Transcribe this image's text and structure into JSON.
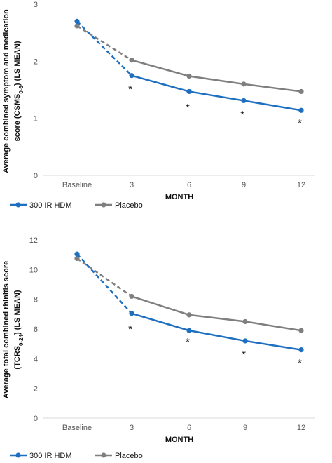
{
  "chart_data": [
    {
      "type": "line",
      "ylabel_line1": "Average combined symptom  and medication",
      "ylabel_line2_prefix": "score (CSMS",
      "ylabel_line2_sub": "0-6",
      "ylabel_line2_suffix": ") (LS MEAN)",
      "xlabel": "MONTH",
      "categories": [
        "Baseline",
        "3",
        "6",
        "9",
        "12"
      ],
      "yticks": [
        "0",
        "1",
        "2",
        "3"
      ],
      "ylim": [
        0,
        3
      ],
      "legend_position": "bottom-left",
      "series": [
        {
          "name": "300 IR HDM",
          "color": "#1f6fc0",
          "values": [
            2.7,
            1.75,
            1.47,
            1.31,
            1.14
          ]
        },
        {
          "name": "Placebo",
          "color": "#7f7f7f",
          "values": [
            2.62,
            2.02,
            1.74,
            1.6,
            1.47
          ]
        }
      ],
      "significance_marker": "*",
      "significant_categories": [
        1,
        2,
        3,
        4
      ]
    },
    {
      "type": "line",
      "ylabel_line1": "Average total combined rhinitis score",
      "ylabel_line2_prefix": "(TCRS",
      "ylabel_line2_sub": "0-24",
      "ylabel_line2_suffix": ") (LS MEAN)",
      "xlabel": "MONTH",
      "categories": [
        "Baseline",
        "3",
        "6",
        "9",
        "12"
      ],
      "yticks": [
        "0",
        "2",
        "4",
        "6",
        "8",
        "10",
        "12"
      ],
      "ylim": [
        0,
        12
      ],
      "legend_position": "bottom-left",
      "series": [
        {
          "name": "300 IR HDM",
          "color": "#1f6fc0",
          "values": [
            11.05,
            7.05,
            5.9,
            5.2,
            4.6
          ]
        },
        {
          "name": "Placebo",
          "color": "#7f7f7f",
          "values": [
            10.75,
            8.2,
            6.95,
            6.5,
            5.9
          ]
        }
      ],
      "significance_marker": "*",
      "significant_categories": [
        1,
        2,
        3,
        4
      ]
    }
  ]
}
